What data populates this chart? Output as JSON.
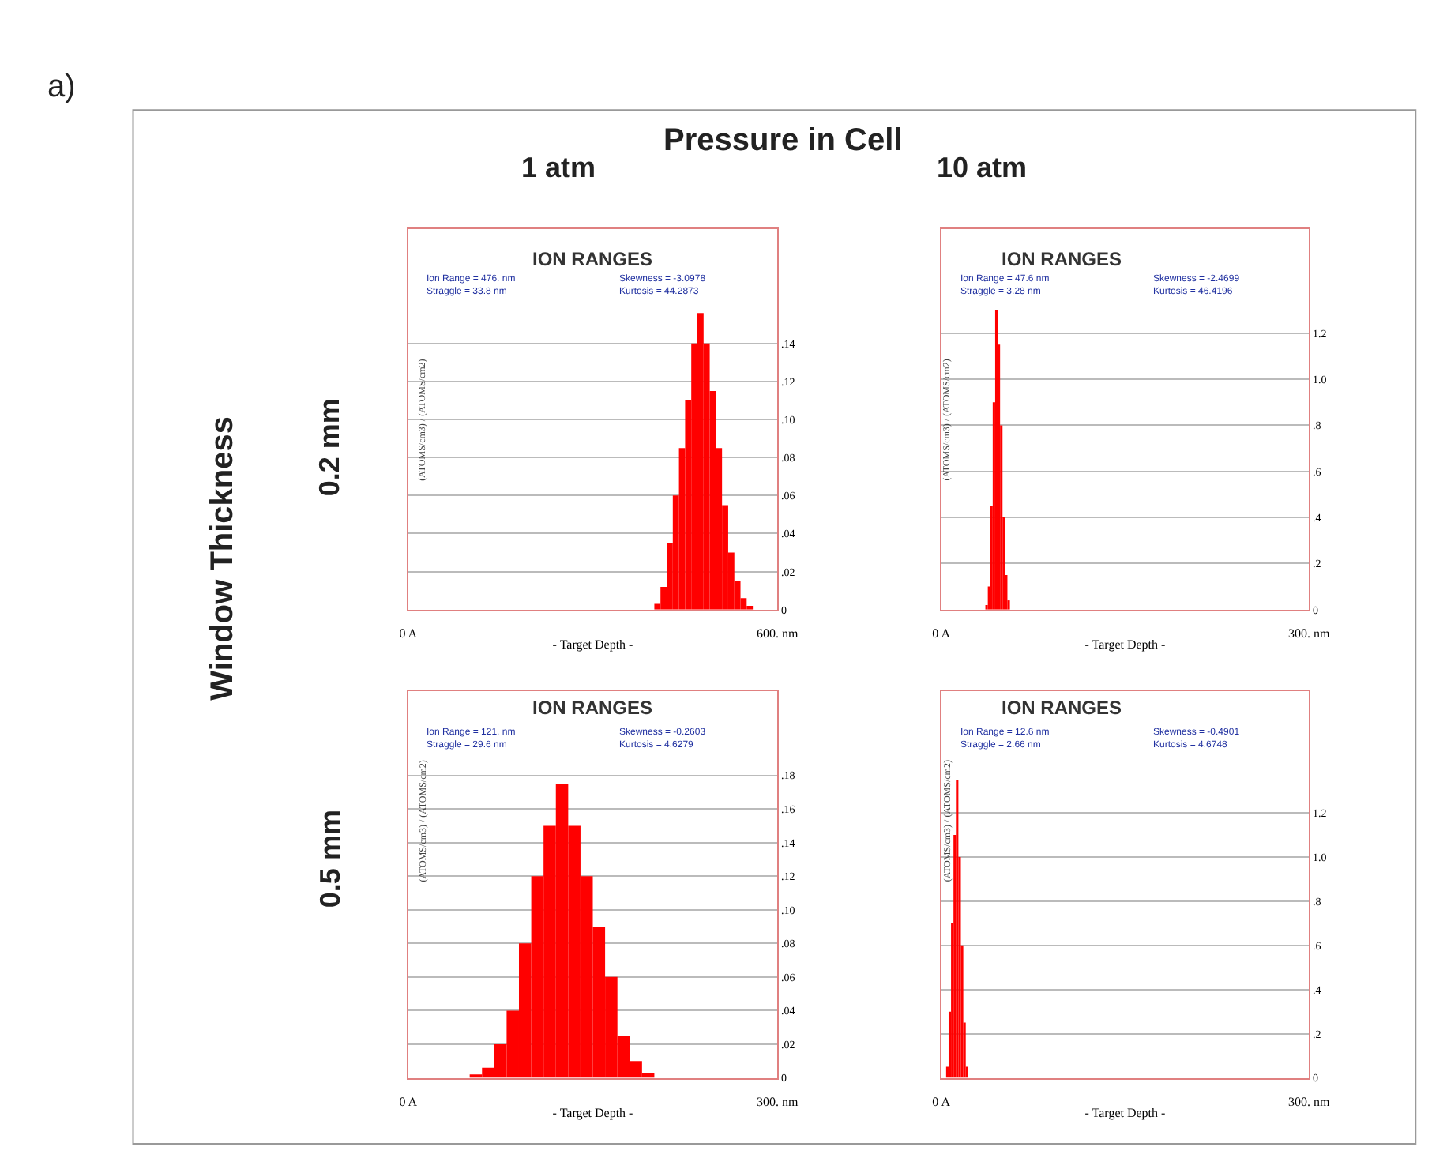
{
  "chart_data": [
    {
      "type": "histogram",
      "title": "ION RANGES",
      "xlabel": "- Target Depth -",
      "ylabel": "(ATOMS/cm3) / (ATOMS/cm2)",
      "color": "#ff0000",
      "grid": "y",
      "bins": [
        400,
        410,
        420,
        430,
        440,
        450,
        460,
        470,
        480,
        490,
        500,
        510,
        520,
        530,
        540,
        550,
        560
      ],
      "values": [
        0.003,
        0.012,
        0.035,
        0.06,
        0.085,
        0.11,
        0.14,
        0.156,
        0.14,
        0.115,
        0.085,
        0.055,
        0.03,
        0.015,
        0.006,
        0.002
      ],
      "xlim": [
        0,
        600
      ],
      "xticks": [
        {
          "value": 0,
          "label": "0 A"
        },
        {
          "value": 600,
          "label": "600. nm"
        }
      ],
      "ylim": [
        0,
        0.2
      ],
      "yticks": [
        0,
        {
          "value": 0.02,
          "label": ".02"
        },
        {
          "value": 0.04,
          "label": ".04"
        },
        {
          "value": 0.06,
          "label": ".06"
        },
        {
          "value": 0.08,
          "label": ".08"
        },
        {
          "value": 0.1,
          "label": ".10"
        },
        {
          "value": 0.12,
          "label": ".12"
        },
        {
          "value": 0.14,
          "label": ".14"
        }
      ],
      "annotations": [
        "Ion Range = 476. nm",
        "Straggle = 33.8 nm",
        "Skewness = -3.0978",
        "Kurtosis = 44.2873",
        "a)",
        "Pressure in Cell",
        "1 atm",
        "Window Thickness",
        "0.2 mm"
      ]
    },
    {
      "type": "histogram",
      "title": "ION RANGES",
      "xlabel": "- Target Depth -",
      "ylabel": "(ATOMS/cm3) / (ATOMS/cm2)",
      "color": "#ff0000",
      "grid": "y",
      "bins": [
        36,
        38,
        40,
        42,
        44,
        46,
        48,
        50,
        52,
        54,
        56
      ],
      "values": [
        0.02,
        0.1,
        0.45,
        0.9,
        1.3,
        1.15,
        0.8,
        0.4,
        0.15,
        0.04
      ],
      "xlim": [
        0,
        300
      ],
      "xticks": [
        {
          "value": 0,
          "label": "0 A"
        },
        {
          "value": 300,
          "label": "300. nm"
        }
      ],
      "ylim": [
        0,
        1.65
      ],
      "yticks": [
        0,
        {
          "value": 0.2,
          "label": ".2"
        },
        {
          "value": 0.4,
          "label": ".4"
        },
        {
          "value": 0.6,
          "label": ".6"
        },
        {
          "value": 0.8,
          "label": ".8"
        },
        {
          "value": 1,
          "label": "1.0"
        },
        {
          "value": 1.2,
          "label": "1.2"
        }
      ],
      "annotations": [
        "Ion Range = 47.6 nm",
        "Straggle = 3.28 nm",
        "Skewness = -2.4699",
        "Kurtosis = 46.4196",
        "10 atm"
      ]
    },
    {
      "type": "histogram",
      "title": "ION RANGES",
      "xlabel": "- Target Depth -",
      "ylabel": "(ATOMS/cm3) / (ATOMS/cm2)",
      "color": "#ff0000",
      "grid": "y",
      "bins": [
        50,
        60,
        70,
        80,
        90,
        100,
        110,
        120,
        130,
        140,
        150,
        160,
        170,
        180,
        190,
        200
      ],
      "values": [
        0.002,
        0.006,
        0.02,
        0.04,
        0.08,
        0.12,
        0.15,
        0.175,
        0.15,
        0.12,
        0.09,
        0.06,
        0.025,
        0.01,
        0.003
      ],
      "xlim": [
        0,
        300
      ],
      "xticks": [
        {
          "value": 0,
          "label": "0 A"
        },
        {
          "value": 300,
          "label": "300. nm"
        }
      ],
      "ylim": [
        0,
        0.23
      ],
      "yticks": [
        0,
        {
          "value": 0.02,
          "label": ".02"
        },
        {
          "value": 0.04,
          "label": ".04"
        },
        {
          "value": 0.06,
          "label": ".06"
        },
        {
          "value": 0.08,
          "label": ".08"
        },
        {
          "value": 0.1,
          "label": ".10"
        },
        {
          "value": 0.12,
          "label": ".12"
        },
        {
          "value": 0.14,
          "label": ".14"
        },
        {
          "value": 0.16,
          "label": ".16"
        },
        {
          "value": 0.18,
          "label": ".18"
        }
      ],
      "annotations": [
        "Ion Range = 121. nm",
        "Straggle = 29.6 nm",
        "Skewness = -0.2603",
        "Kurtosis = 4.6279",
        "0.5 mm"
      ]
    },
    {
      "type": "histogram",
      "title": "ION RANGES",
      "xlabel": "- Target Depth -",
      "ylabel": "(ATOMS/cm3) / (ATOMS/cm2)",
      "color": "#ff0000",
      "grid": "y",
      "bins": [
        4,
        6,
        8,
        10,
        12,
        14,
        16,
        18,
        20,
        22
      ],
      "values": [
        0.05,
        0.3,
        0.7,
        1.1,
        1.35,
        1.0,
        0.6,
        0.25,
        0.05
      ],
      "xlim": [
        0,
        300
      ],
      "xticks": [
        {
          "value": 0,
          "label": "0 A"
        },
        {
          "value": 300,
          "label": "300. nm"
        }
      ],
      "ylim": [
        0,
        1.75
      ],
      "yticks": [
        0,
        {
          "value": 0.2,
          "label": ".2"
        },
        {
          "value": 0.4,
          "label": ".4"
        },
        {
          "value": 0.6,
          "label": ".6"
        },
        {
          "value": 0.8,
          "label": ".8"
        },
        {
          "value": 1,
          "label": "1.0"
        },
        {
          "value": 1.2,
          "label": "1.2"
        }
      ],
      "annotations": [
        "Ion Range = 12.6 nm",
        "Straggle = 2.66 nm",
        "Skewness = -0.4901",
        "Kurtosis = 4.6748"
      ]
    }
  ]
}
